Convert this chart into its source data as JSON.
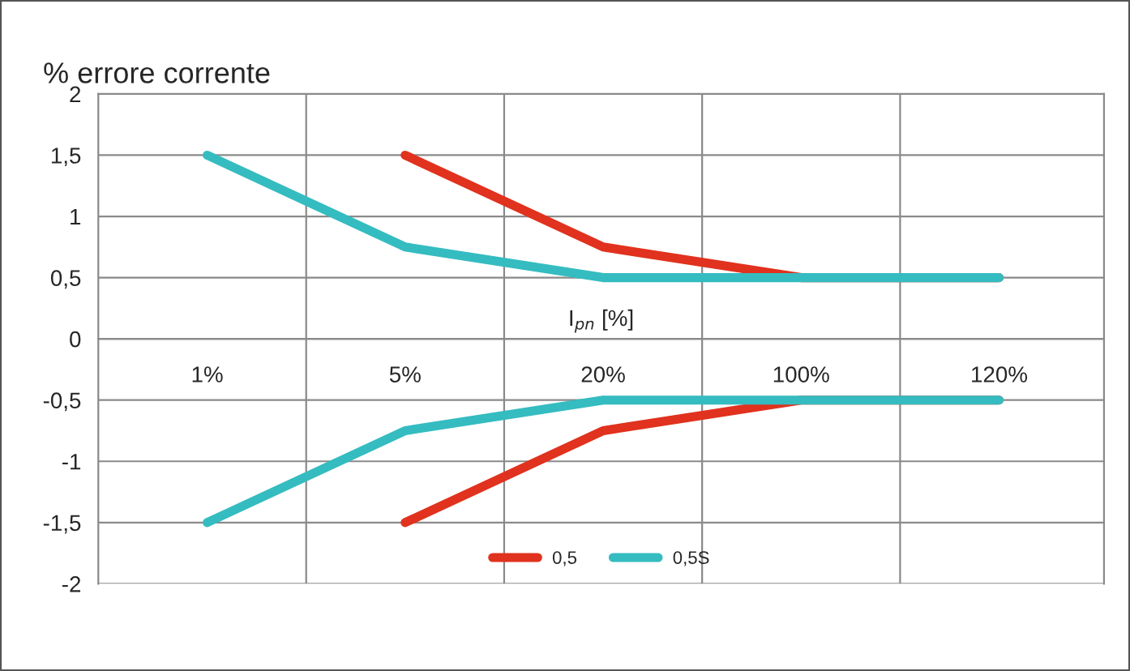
{
  "chart_data": {
    "type": "line",
    "ylabel": "% errore corrente",
    "xlabel": "I$_{pn}$ [%]",
    "categories": [
      "1%",
      "5%",
      "20%",
      "100%",
      "120%"
    ],
    "series": [
      {
        "name": "0,5",
        "color": "#e0321e",
        "values": [
          null,
          1.5,
          0.75,
          0.5,
          0.5
        ]
      },
      {
        "color": "#e0321e",
        "values": [
          null,
          -1.5,
          -0.75,
          -0.5,
          -0.5
        ]
      },
      {
        "name": "0,5S",
        "color": "#35bcc0",
        "values": [
          1.5,
          0.75,
          0.5,
          0.5,
          0.5
        ]
      },
      {
        "color": "#35bcc0",
        "values": [
          -1.5,
          -0.75,
          -0.5,
          -0.5,
          -0.5
        ]
      }
    ],
    "ylim": [
      -2,
      2
    ],
    "yticks": [
      {
        "value": -2,
        "label": "-2"
      },
      {
        "value": -1.5,
        "label": "-1,5"
      },
      {
        "value": -1,
        "label": "-1"
      },
      {
        "value": -0.5,
        "label": "-0,5"
      },
      0,
      {
        "value": 0.5,
        "label": "0,5"
      },
      1,
      {
        "value": 1.5,
        "label": "1,5"
      },
      2
    ],
    "grid": true,
    "legend": "bottom",
    "marker": "none",
    "line_style": "solid"
  }
}
